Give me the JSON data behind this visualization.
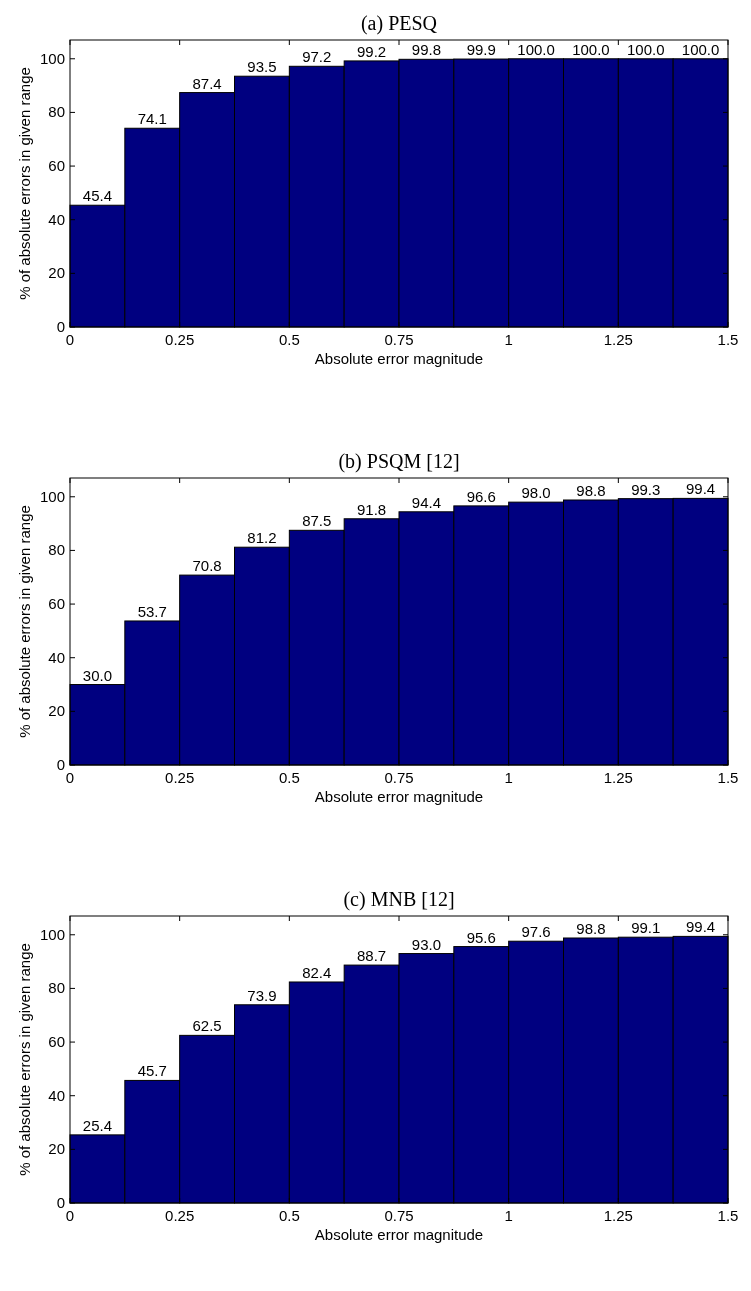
{
  "chart_data": [
    {
      "type": "histogram",
      "title": "(a) PESQ",
      "xlabel": "Absolute error magnitude",
      "ylabel": "% of absolute errors in given range",
      "bins": [
        0,
        0.125,
        0.25,
        0.375,
        0.5,
        0.625,
        0.75,
        0.875,
        1,
        1.125,
        1.25,
        1.375,
        1.5
      ],
      "values": [
        45.4,
        74.1,
        87.4,
        93.5,
        97.2,
        99.2,
        99.8,
        99.9,
        100.0,
        100.0,
        100.0,
        100.0
      ],
      "value_labels": [
        "45.4",
        "74.1",
        "87.4",
        "93.5",
        "97.2",
        "99.2",
        "99.8",
        "99.9",
        "100.0",
        "100.0",
        "100.0",
        "100.0"
      ],
      "color": "#000080",
      "xlim": [
        0,
        1.5
      ],
      "xticks": [
        0,
        0.25,
        0.5,
        0.75,
        1,
        1.25,
        1.5
      ],
      "ylim": [
        0,
        107
      ],
      "yticks": [
        0,
        20,
        40,
        60,
        80,
        100
      ],
      "grid": false
    },
    {
      "type": "histogram",
      "title": "(b) PSQM [12]",
      "xlabel": "Absolute error magnitude",
      "ylabel": "% of absolute errors in given range",
      "bins": [
        0,
        0.125,
        0.25,
        0.375,
        0.5,
        0.625,
        0.75,
        0.875,
        1,
        1.125,
        1.25,
        1.375,
        1.5
      ],
      "values": [
        30.0,
        53.7,
        70.8,
        81.2,
        87.5,
        91.8,
        94.4,
        96.6,
        98.0,
        98.8,
        99.3,
        99.4
      ],
      "value_labels": [
        "30.0",
        "53.7",
        "70.8",
        "81.2",
        "87.5",
        "91.8",
        "94.4",
        "96.6",
        "98.0",
        "98.8",
        "99.3",
        "99.4"
      ],
      "color": "#000080",
      "xlim": [
        0,
        1.5
      ],
      "xticks": [
        0,
        0.25,
        0.5,
        0.75,
        1,
        1.25,
        1.5
      ],
      "ylim": [
        0,
        107
      ],
      "yticks": [
        0,
        20,
        40,
        60,
        80,
        100
      ],
      "grid": false
    },
    {
      "type": "histogram",
      "title": "(c) MNB [12]",
      "xlabel": "Absolute error magnitude",
      "ylabel": "% of absolute errors in given range",
      "bins": [
        0,
        0.125,
        0.25,
        0.375,
        0.5,
        0.625,
        0.75,
        0.875,
        1,
        1.125,
        1.25,
        1.375,
        1.5
      ],
      "values": [
        25.4,
        45.7,
        62.5,
        73.9,
        82.4,
        88.7,
        93.0,
        95.6,
        97.6,
        98.8,
        99.1,
        99.4
      ],
      "value_labels": [
        "25.4",
        "45.7",
        "62.5",
        "73.9",
        "82.4",
        "88.7",
        "93.0",
        "95.6",
        "97.6",
        "98.8",
        "99.1",
        "99.4"
      ],
      "color": "#000080",
      "xlim": [
        0,
        1.5
      ],
      "xticks": [
        0,
        0.25,
        0.5,
        0.75,
        1,
        1.25,
        1.5
      ],
      "ylim": [
        0,
        107
      ],
      "yticks": [
        0,
        20,
        40,
        60,
        80,
        100
      ],
      "grid": false
    }
  ]
}
